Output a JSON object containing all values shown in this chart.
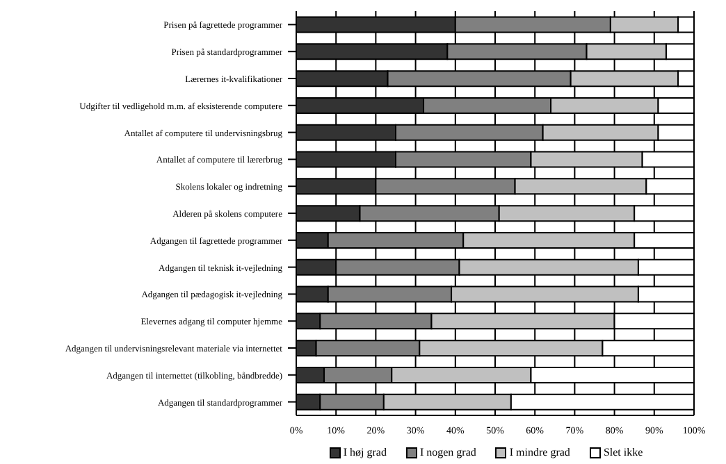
{
  "chart_data": {
    "type": "bar",
    "orientation": "horizontal",
    "stacked": true,
    "categories": [
      "Prisen på fagrettede programmer",
      "Prisen på standardprogrammer",
      "Lærernes it-kvalifikationer",
      "Udgifter til vedligehold m.m. af eksisterende computere",
      "Antallet af computere til undervisningsbrug",
      "Antallet af computere til lærerbrug",
      "Skolens lokaler og indretning",
      "Alderen på skolens computere",
      "Adgangen til fagrettede programmer",
      "Adgangen til teknisk it-vejledning",
      "Adgangen til pædagogisk it-vejledning",
      "Elevernes adgang til computer hjemme",
      "Adgangen til undervisningsrelevant materiale via internettet",
      "Adgangen til internettet (tilkobling, båndbredde)",
      "Adgangen til standardprogrammer"
    ],
    "series": [
      {
        "name": "I høj grad",
        "color": "#333333",
        "values": [
          40,
          38,
          23,
          32,
          25,
          25,
          20,
          16,
          8,
          10,
          8,
          6,
          5,
          7,
          6
        ]
      },
      {
        "name": "I nogen grad",
        "color": "#808080",
        "values": [
          39,
          35,
          46,
          32,
          37,
          34,
          35,
          35,
          34,
          31,
          31,
          28,
          26,
          17,
          16
        ]
      },
      {
        "name": "I mindre grad",
        "color": "#c0c0c0",
        "values": [
          17,
          20,
          27,
          27,
          29,
          28,
          33,
          34,
          43,
          45,
          47,
          46,
          46,
          35,
          32
        ]
      },
      {
        "name": "Slet ikke",
        "color": "#ffffff",
        "values": [
          4,
          7,
          4,
          9,
          9,
          13,
          12,
          15,
          15,
          14,
          14,
          20,
          23,
          41,
          46
        ]
      }
    ],
    "xlim": [
      0,
      100
    ],
    "xticks": [
      {
        "value": 0,
        "label": "0%"
      },
      {
        "value": 10,
        "label": "10%"
      },
      {
        "value": 20,
        "label": "20%"
      },
      {
        "value": 30,
        "label": "30%"
      },
      {
        "value": 40,
        "label": "40%"
      },
      {
        "value": 50,
        "label": "50%"
      },
      {
        "value": 60,
        "label": "60%"
      },
      {
        "value": 70,
        "label": "70%"
      },
      {
        "value": 80,
        "label": "80%"
      },
      {
        "value": 90,
        "label": "90%"
      },
      {
        "value": 100,
        "label": "100%"
      }
    ],
    "grid": "x",
    "legend": "bottom"
  }
}
